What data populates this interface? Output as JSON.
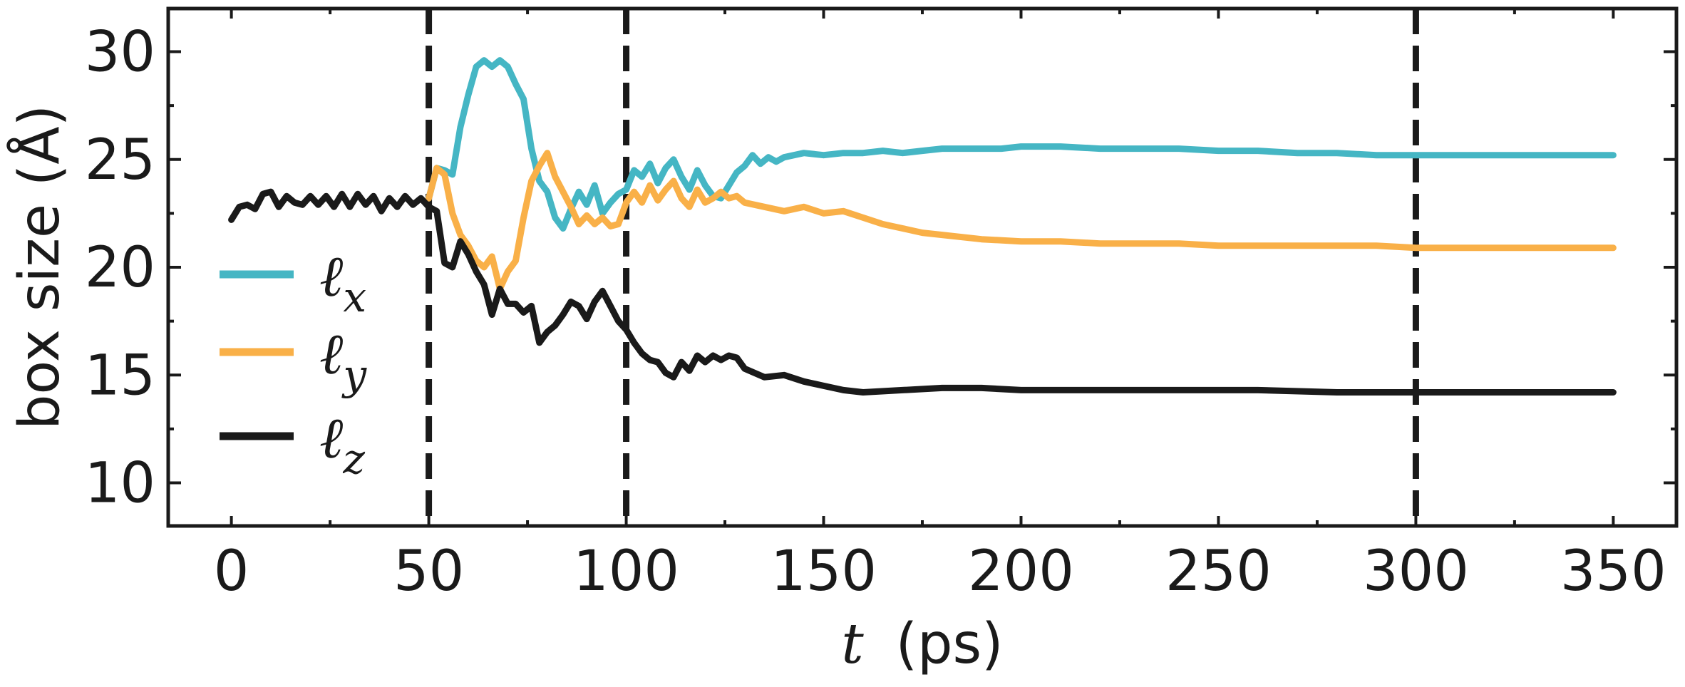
{
  "chart_data": {
    "type": "line",
    "xlabel_var": "t",
    "xlabel_unit": "(ps)",
    "ylabel": "box size (Å)",
    "xlim": [
      -16,
      366
    ],
    "ylim": [
      8,
      32
    ],
    "xticks": [
      0,
      50,
      100,
      150,
      200,
      250,
      300,
      350
    ],
    "yticks": [
      10,
      15,
      20,
      25,
      30
    ],
    "vlines": [
      50,
      100,
      300
    ],
    "legend_position": "left",
    "series": [
      {
        "name": "ℓx",
        "color": "#45b6c4",
        "x": [
          50,
          52,
          54,
          56,
          58,
          60,
          62,
          64,
          66,
          68,
          70,
          72,
          74,
          76,
          78,
          80,
          82,
          84,
          86,
          88,
          90,
          92,
          94,
          96,
          98,
          100,
          102,
          104,
          106,
          108,
          110,
          112,
          114,
          116,
          118,
          120,
          122,
          124,
          126,
          128,
          130,
          132,
          134,
          136,
          138,
          140,
          145,
          150,
          155,
          160,
          165,
          170,
          175,
          180,
          185,
          190,
          195,
          200,
          210,
          220,
          230,
          240,
          250,
          260,
          270,
          280,
          290,
          300,
          320,
          350
        ],
        "y": [
          23.2,
          24.6,
          24.5,
          24.3,
          26.5,
          28.0,
          29.3,
          29.6,
          29.3,
          29.6,
          29.3,
          28.5,
          27.8,
          25.5,
          24.0,
          23.5,
          22.3,
          21.8,
          22.7,
          23.5,
          22.9,
          23.8,
          22.5,
          23.0,
          23.4,
          23.6,
          24.5,
          24.2,
          24.8,
          23.9,
          24.6,
          25.0,
          24.2,
          23.6,
          24.5,
          23.8,
          23.3,
          23.2,
          23.8,
          24.4,
          24.7,
          25.2,
          24.8,
          25.1,
          24.9,
          25.1,
          25.3,
          25.2,
          25.3,
          25.3,
          25.4,
          25.3,
          25.4,
          25.5,
          25.5,
          25.5,
          25.5,
          25.6,
          25.6,
          25.5,
          25.5,
          25.5,
          25.4,
          25.4,
          25.3,
          25.3,
          25.2,
          25.2,
          25.2,
          25.2
        ]
      },
      {
        "name": "ℓy",
        "color": "#f9b048",
        "x": [
          50,
          52,
          54,
          56,
          58,
          60,
          62,
          64,
          66,
          68,
          70,
          72,
          74,
          76,
          78,
          80,
          82,
          84,
          86,
          88,
          90,
          92,
          94,
          96,
          98,
          100,
          102,
          104,
          106,
          108,
          110,
          112,
          114,
          116,
          118,
          120,
          122,
          124,
          126,
          128,
          130,
          135,
          140,
          145,
          150,
          155,
          160,
          165,
          170,
          175,
          180,
          190,
          200,
          210,
          220,
          230,
          240,
          250,
          260,
          270,
          280,
          290,
          300,
          320,
          350
        ],
        "y": [
          23.2,
          24.6,
          24.3,
          22.5,
          21.5,
          21.0,
          20.3,
          20.0,
          20.5,
          19.0,
          19.8,
          20.3,
          22.3,
          24.0,
          24.7,
          25.3,
          24.2,
          23.5,
          22.8,
          22.0,
          22.4,
          22.0,
          22.3,
          21.9,
          22.0,
          23.0,
          23.5,
          23.0,
          23.8,
          23.1,
          23.6,
          24.0,
          23.2,
          22.8,
          23.6,
          23.0,
          23.2,
          23.5,
          23.2,
          23.3,
          23.0,
          22.8,
          22.6,
          22.8,
          22.5,
          22.6,
          22.3,
          22.0,
          21.8,
          21.6,
          21.5,
          21.3,
          21.2,
          21.2,
          21.1,
          21.1,
          21.1,
          21.0,
          21.0,
          21.0,
          21.0,
          21.0,
          20.9,
          20.9,
          20.9
        ]
      },
      {
        "name": "ℓz",
        "color": "#1a1a1a",
        "x": [
          0,
          2,
          4,
          6,
          8,
          10,
          12,
          14,
          16,
          18,
          20,
          22,
          24,
          26,
          28,
          30,
          32,
          34,
          36,
          38,
          40,
          42,
          44,
          46,
          48,
          50,
          52,
          54,
          56,
          58,
          60,
          62,
          64,
          66,
          68,
          70,
          72,
          74,
          76,
          78,
          80,
          82,
          84,
          86,
          88,
          90,
          92,
          94,
          96,
          98,
          100,
          102,
          104,
          106,
          108,
          110,
          112,
          114,
          116,
          118,
          120,
          122,
          124,
          126,
          128,
          130,
          135,
          140,
          145,
          150,
          155,
          160,
          170,
          180,
          190,
          200,
          210,
          220,
          240,
          260,
          280,
          300,
          320,
          350
        ],
        "y": [
          22.2,
          22.8,
          22.9,
          22.7,
          23.4,
          23.5,
          22.8,
          23.3,
          23.0,
          22.9,
          23.3,
          22.9,
          23.3,
          22.8,
          23.4,
          22.8,
          23.4,
          22.9,
          23.3,
          22.6,
          23.2,
          22.8,
          23.3,
          22.9,
          23.2,
          22.8,
          22.6,
          20.2,
          20.0,
          21.2,
          20.6,
          19.8,
          19.2,
          17.8,
          19.0,
          18.3,
          18.3,
          17.9,
          18.2,
          16.5,
          17.0,
          17.3,
          17.8,
          18.4,
          18.2,
          17.6,
          18.4,
          18.9,
          18.2,
          17.5,
          17.1,
          16.5,
          16.0,
          15.7,
          15.6,
          15.1,
          14.9,
          15.6,
          15.2,
          15.9,
          15.6,
          15.9,
          15.7,
          15.9,
          15.8,
          15.3,
          14.9,
          15.0,
          14.7,
          14.5,
          14.3,
          14.2,
          14.3,
          14.4,
          14.4,
          14.3,
          14.3,
          14.3,
          14.3,
          14.3,
          14.2,
          14.2,
          14.2,
          14.2
        ]
      }
    ]
  }
}
